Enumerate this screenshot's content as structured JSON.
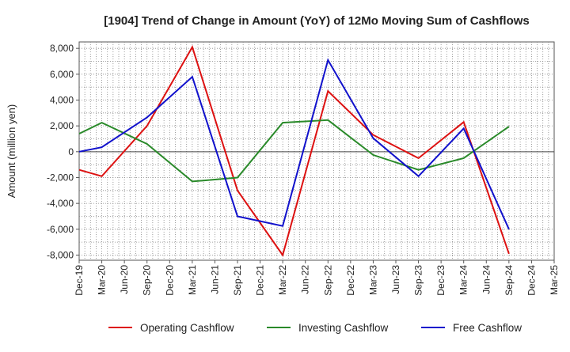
{
  "chart_data": {
    "type": "line",
    "title": "[1904]  Trend of Change in Amount (YoY) of 12Mo Moving Sum of Cashflows",
    "xlabel": "",
    "ylabel": "Amount (million yen)",
    "ylim": [
      -8400,
      8500
    ],
    "yticks": [
      8000,
      6000,
      4000,
      2000,
      0,
      -2000,
      -4000,
      -6000,
      -8000
    ],
    "ytick_labels": [
      "8,000",
      "6,000",
      "4,000",
      "2,000",
      "0",
      "-2,000",
      "-4,000",
      "-6,000",
      "-8,000"
    ],
    "categories": [
      "Dec-19",
      "Mar-20",
      "Jun-20",
      "Sep-20",
      "Dec-20",
      "Mar-21",
      "Jun-21",
      "Sep-21",
      "Dec-21",
      "Mar-22",
      "Jun-22",
      "Sep-22",
      "Dec-22",
      "Mar-23",
      "Jun-23",
      "Sep-23",
      "Dec-23",
      "Mar-24",
      "Jun-24",
      "Sep-24",
      "Dec-24",
      "Mar-25"
    ],
    "grid": true,
    "legend_position": "bottom",
    "series": [
      {
        "name": "Operating Cashflow",
        "color": "#dd1111",
        "values": [
          -1400,
          -1900,
          null,
          2000,
          null,
          8100,
          null,
          -3000,
          null,
          -8000,
          null,
          4700,
          null,
          1300,
          null,
          -500,
          null,
          2300,
          null,
          -7900,
          null,
          null
        ]
      },
      {
        "name": "Investing Cashflow",
        "color": "#2a8a2a",
        "values": [
          1400,
          2250,
          null,
          600,
          null,
          -2300,
          null,
          -2000,
          null,
          2250,
          null,
          2450,
          null,
          -250,
          null,
          -1400,
          null,
          -500,
          null,
          1950,
          null,
          null
        ]
      },
      {
        "name": "Free Cashflow",
        "color": "#1111cc",
        "values": [
          0,
          350,
          null,
          2650,
          null,
          5800,
          null,
          -5000,
          null,
          -5750,
          null,
          7100,
          null,
          1050,
          null,
          -1900,
          null,
          1800,
          null,
          -6000,
          null,
          null
        ]
      }
    ]
  }
}
